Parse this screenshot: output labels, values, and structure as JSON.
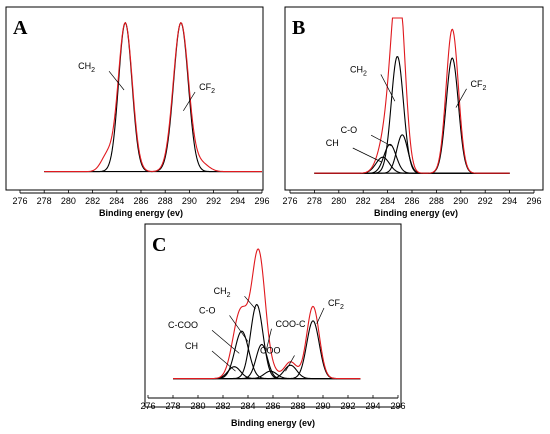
{
  "figure": {
    "colors": {
      "measured": "#e0191e",
      "fit": "#000000"
    }
  },
  "chart_data": [
    {
      "type": "line",
      "panel": "A",
      "xlabel": "Binding energy (ev)",
      "xlim": [
        276,
        296
      ],
      "xticks": [
        276,
        278,
        280,
        282,
        284,
        286,
        288,
        290,
        292,
        294,
        296
      ],
      "ylim": [
        0,
        1
      ],
      "baseline": 0.04,
      "xrange": [
        278,
        296
      ],
      "peaks": [
        {
          "name": "CH2",
          "label": "CH",
          "sub": "2",
          "center": 284.7,
          "height": 0.93,
          "width": 0.55,
          "color": "#000000"
        },
        {
          "name": "CF2",
          "label": "CF",
          "sub": "2",
          "center": 289.3,
          "height": 0.93,
          "width": 0.6,
          "color": "#000000"
        }
      ],
      "envelope": {
        "color": "#e0191e",
        "shoulders": [
          {
            "center": 283.2,
            "height": 0.1,
            "width": 0.5
          },
          {
            "center": 291.0,
            "height": 0.05,
            "width": 0.6
          }
        ]
      },
      "annotations": [
        {
          "label": "CH",
          "sub": "2",
          "text_x": 282.2,
          "text_y": 0.68,
          "to_x": 284.6,
          "to_y": 0.55
        },
        {
          "label": "CF",
          "sub": "2",
          "text_x": 290.8,
          "text_y": 0.55,
          "to_x": 289.5,
          "to_y": 0.42
        }
      ]
    },
    {
      "type": "line",
      "panel": "B",
      "xlabel": "Binding energy (ev)",
      "xlim": [
        276,
        296
      ],
      "xticks": [
        276,
        278,
        280,
        282,
        284,
        286,
        288,
        290,
        292,
        294,
        296
      ],
      "ylim": [
        0,
        1
      ],
      "baseline": 0.03,
      "xrange": [
        278,
        294
      ],
      "peaks": [
        {
          "name": "CH",
          "center": 283.6,
          "height": 0.1,
          "width": 0.55,
          "color": "#000000"
        },
        {
          "name": "C-O",
          "center": 284.2,
          "height": 0.18,
          "width": 0.5,
          "color": "#000000"
        },
        {
          "name": "CH2",
          "center": 284.8,
          "height": 0.73,
          "width": 0.5,
          "color": "#000000"
        },
        {
          "name": "C-O2",
          "center": 285.2,
          "height": 0.24,
          "width": 0.45,
          "color": "#000000"
        },
        {
          "name": "CF2",
          "center": 289.3,
          "height": 0.72,
          "width": 0.5,
          "color": "#000000"
        }
      ],
      "envelope": {
        "color": "#e0191e",
        "shoulders": []
      },
      "annotations": [
        {
          "label": "CH",
          "sub": "2",
          "text_x": 282.3,
          "text_y": 0.66,
          "to_x": 284.6,
          "to_y": 0.48
        },
        {
          "label": "C-O",
          "sub": "",
          "text_x": 281.5,
          "text_y": 0.28,
          "to_x": 284.3,
          "to_y": 0.2
        },
        {
          "label": "CH",
          "sub": "",
          "text_x": 280.0,
          "text_y": 0.2,
          "to_x": 283.5,
          "to_y": 0.1
        },
        {
          "label": "CF",
          "sub": "2",
          "text_x": 290.8,
          "text_y": 0.57,
          "to_x": 289.6,
          "to_y": 0.44
        }
      ]
    },
    {
      "type": "line",
      "panel": "C",
      "xlabel": "Binding energy (ev)",
      "xlim": [
        276,
        296
      ],
      "xticks": [
        276,
        278,
        280,
        282,
        284,
        286,
        288,
        290,
        292,
        294,
        296
      ],
      "ylim": [
        0,
        1
      ],
      "baseline": 0.03,
      "xrange": [
        278,
        293
      ],
      "peaks": [
        {
          "name": "CH",
          "center": 282.9,
          "height": 0.08,
          "width": 0.5,
          "color": "#000000"
        },
        {
          "name": "C-COO",
          "center": 283.5,
          "height": 0.32,
          "width": 0.55,
          "color": "#000000"
        },
        {
          "name": "CH2",
          "center": 284.7,
          "height": 0.5,
          "width": 0.5,
          "color": "#000000"
        },
        {
          "name": "C-O",
          "center": 285.1,
          "height": 0.23,
          "width": 0.45,
          "color": "#000000"
        },
        {
          "name": "COO-C",
          "center": 285.8,
          "height": 0.05,
          "width": 0.5,
          "color": "#000000"
        },
        {
          "name": "COO",
          "center": 287.4,
          "height": 0.09,
          "width": 0.5,
          "color": "#000000"
        },
        {
          "name": "CF2",
          "center": 289.2,
          "height": 0.39,
          "width": 0.5,
          "color": "#000000"
        }
      ],
      "envelope": {
        "color": "#e0191e",
        "shoulders": []
      },
      "annotations": [
        {
          "label": "CH",
          "sub": "2",
          "text_x": 282.6,
          "text_y": 0.6,
          "to_x": 284.6,
          "to_y": 0.5
        },
        {
          "label": "C-O",
          "sub": "",
          "text_x": 281.4,
          "text_y": 0.47,
          "to_x": 284.0,
          "to_y": 0.28
        },
        {
          "label": "C-COO",
          "sub": "",
          "text_x": 280.0,
          "text_y": 0.37,
          "to_x": 283.3,
          "to_y": 0.2
        },
        {
          "label": "CH",
          "sub": "",
          "text_x": 280.0,
          "text_y": 0.23,
          "to_x": 283.0,
          "to_y": 0.08
        },
        {
          "label": "COO-C",
          "sub": "",
          "text_x": 286.2,
          "text_y": 0.38,
          "to_x": 285.4,
          "to_y": 0.2
        },
        {
          "label": "COO",
          "sub": "",
          "text_x": 286.6,
          "text_y": 0.2,
          "to_x": 287.0,
          "to_y": 0.08
        },
        {
          "label": "CF",
          "sub": "2",
          "text_x": 290.4,
          "text_y": 0.52,
          "to_x": 289.5,
          "to_y": 0.4
        }
      ]
    }
  ]
}
